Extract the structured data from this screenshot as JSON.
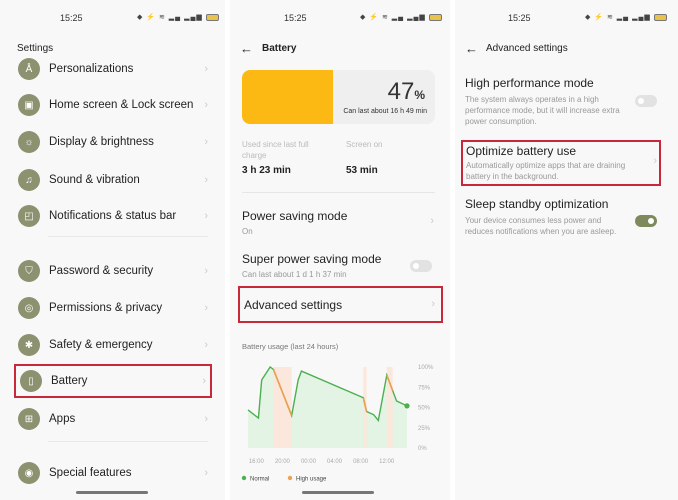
{
  "status": {
    "time": "15:25"
  },
  "colors": {
    "accent": "#8c9170",
    "highlight": "#c8283c",
    "battery_fill": "#fdb913",
    "normal": "#4caf50",
    "high_usage": "#f0a050"
  },
  "settings": {
    "title": "Settings",
    "items": [
      {
        "label": "Personalizations",
        "icon": "personalization-icon"
      },
      {
        "label": "Home screen & Lock screen",
        "icon": "image-icon"
      },
      {
        "label": "Display & brightness",
        "icon": "sun-icon"
      },
      {
        "label": "Sound & vibration",
        "icon": "bell-icon"
      },
      {
        "label": "Notifications & status bar",
        "icon": "notification-icon"
      },
      {
        "label": "Password & security",
        "icon": "shield-icon"
      },
      {
        "label": "Permissions & privacy",
        "icon": "privacy-icon"
      },
      {
        "label": "Safety & emergency",
        "icon": "emergency-icon"
      },
      {
        "label": "Battery",
        "icon": "battery-icon",
        "highlighted": true
      },
      {
        "label": "Apps",
        "icon": "apps-grid-icon"
      },
      {
        "label": "Special features",
        "icon": "special-features-icon"
      }
    ]
  },
  "battery": {
    "title": "Battery",
    "percent": "47",
    "percent_sign": "%",
    "level": 47,
    "estimate": "Can last about 16 h 49 min",
    "used_label": "Used since last full charge",
    "used_value": "3 h 23 min",
    "screen_label": "Screen on",
    "screen_value": "53 min",
    "power_saving": {
      "label": "Power saving mode",
      "status": "On"
    },
    "super_saving": {
      "label": "Super power saving mode",
      "sub": "Can last about 1 d 1 h 37 min",
      "on": false
    },
    "advanced": {
      "label": "Advanced settings"
    }
  },
  "chart_data": {
    "type": "area",
    "title": "Battery usage (last 24 hours)",
    "x_ticks": [
      "16:00",
      "20:00",
      "00:00",
      "04:00",
      "08:00",
      "12:00"
    ],
    "y_ticks": [
      "100%",
      "75%",
      "50%",
      "25%",
      "0%"
    ],
    "ylim": [
      0,
      100
    ],
    "points": [
      [
        "14:48",
        47
      ],
      [
        "16:24",
        37
      ],
      [
        "16:54",
        84
      ],
      [
        "18:12",
        100
      ],
      [
        "18:42",
        97
      ],
      [
        "21:30",
        40
      ],
      [
        "22:30",
        84
      ],
      [
        "23:00",
        95
      ],
      [
        "08:30",
        62
      ],
      [
        "09:00",
        45
      ],
      [
        "10:06",
        41
      ],
      [
        "10:48",
        34
      ],
      [
        "12:06",
        90
      ],
      [
        "13:36",
        58
      ],
      [
        "15:12",
        52
      ]
    ],
    "high_usage_ranges": [
      [
        "18:42",
        "21:30"
      ],
      [
        "08:30",
        "09:00"
      ],
      [
        "12:06",
        "13:00"
      ]
    ],
    "legend": [
      {
        "name": "Normal",
        "color": "#4caf50"
      },
      {
        "name": "High usage",
        "color": "#f0a050"
      }
    ]
  },
  "advanced": {
    "title": "Advanced settings",
    "high_perf": {
      "label": "High performance mode",
      "sub": "The system always operates in a high performance mode, but it will increase extra power consumption.",
      "on": false
    },
    "optimize": {
      "label": "Optimize battery use",
      "sub": "Automatically optimize apps that are draining battery in the background."
    },
    "sleep": {
      "label": "Sleep standby optimization",
      "sub": "Your device consumes less power and reduces notifications when you are asleep.",
      "on": true
    }
  }
}
